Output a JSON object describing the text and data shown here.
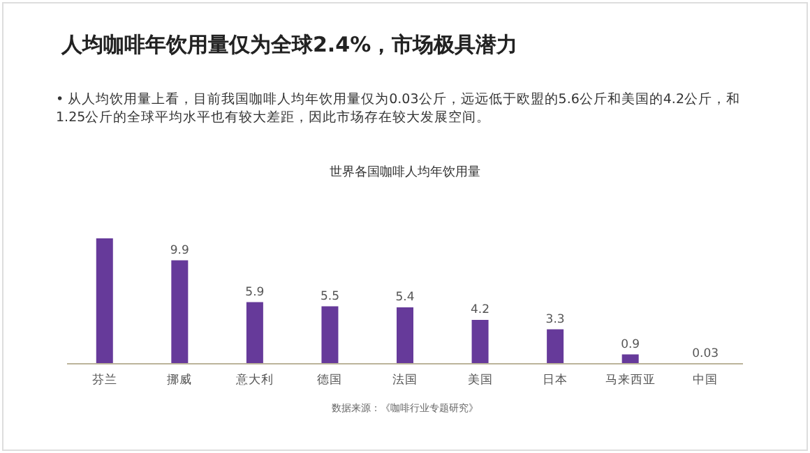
{
  "chart_data": {
    "type": "bar",
    "title": "人均咖啡年饮用量仅为全球2.4%，市场极具潜力",
    "subtitle": "世界各国咖啡人均年饮用量",
    "annotations": [
      "•  从人均饮用量上看，目前我国咖啡人均年饮用量仅为0.03公斤，远远低于欧盟的5.6公斤和美国的4.2公斤，和1.25公斤的全球平均水平也有较大差距，因此市场存在较大发展空间。",
      "数据来源：《咖啡行业专题研究》"
    ],
    "categories": [
      "芬兰",
      "挪威",
      "意大利",
      "德国",
      "法国",
      "美国",
      "日本",
      "马来西亚",
      "中国"
    ],
    "values": [
      12,
      9.9,
      5.9,
      5.5,
      5.4,
      4.2,
      3.3,
      0.9,
      0.03
    ],
    "value_labels": [
      null,
      "9.9",
      "5.9",
      "5.5",
      "5.4",
      "4.2",
      "3.3",
      "0.9",
      "0.03"
    ],
    "color": "#663a9a"
  }
}
